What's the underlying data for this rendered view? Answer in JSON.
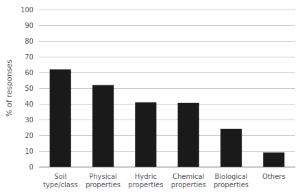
{
  "chart_data": {
    "type": "bar",
    "categories": [
      "Soil\ntype/class",
      "Physical\nproperties",
      "Hydric\nproperties",
      "Chemical\nproperties",
      "Biological\nproperties",
      "Others"
    ],
    "values": [
      62,
      52,
      41,
      40.5,
      24,
      9
    ],
    "color": "#1a1a1a",
    "ylabel": "% of responses",
    "ylim": [
      0,
      100
    ],
    "yticks": [
      0,
      10,
      20,
      30,
      40,
      50,
      60,
      70,
      80,
      90,
      100
    ],
    "grid": true
  }
}
